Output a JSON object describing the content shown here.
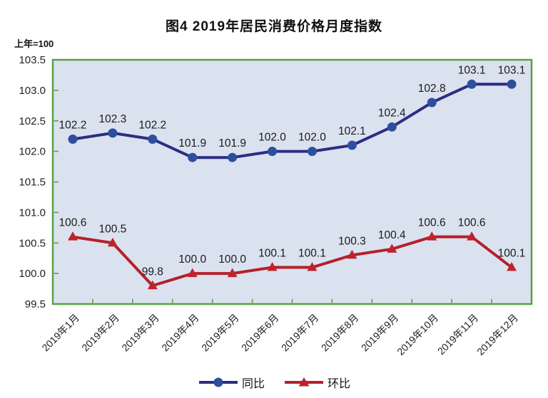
{
  "chart_data": {
    "type": "line",
    "title": "图4  2019年居民消费价格月度指数",
    "axis_note": "上年=100",
    "categories": [
      "2019年1月",
      "2019年2月",
      "2019年3月",
      "2019年4月",
      "2019年5月",
      "2019年6月",
      "2019年7月",
      "2019年8月",
      "2019年9月",
      "2019年10月",
      "2019年11月",
      "2019年12月"
    ],
    "series": [
      {
        "name": "同比",
        "marker": "circle",
        "line_color": "#2b2d84",
        "marker_color": "#2d4f9e",
        "values": [
          102.2,
          102.3,
          102.2,
          101.9,
          101.9,
          102.0,
          102.0,
          102.1,
          102.4,
          102.8,
          103.1,
          103.1
        ]
      },
      {
        "name": "环比",
        "marker": "triangle",
        "line_color": "#b5202c",
        "marker_color": "#bf232b",
        "values": [
          100.6,
          100.5,
          99.8,
          100.0,
          100.0,
          100.1,
          100.1,
          100.3,
          100.4,
          100.6,
          100.6,
          100.1
        ]
      }
    ],
    "ylim": [
      99.5,
      103.5
    ],
    "yticks": [
      99.5,
      100.0,
      100.5,
      101.0,
      101.5,
      102.0,
      102.5,
      103.0,
      103.5
    ],
    "grid": false,
    "legend_position": "bottom",
    "colors": {
      "plot_background": "#dbe2ef",
      "plot_border": "#56a345",
      "tick": "#56a345",
      "label_text": "#1a1a1a",
      "axis_text": "#222222"
    }
  }
}
